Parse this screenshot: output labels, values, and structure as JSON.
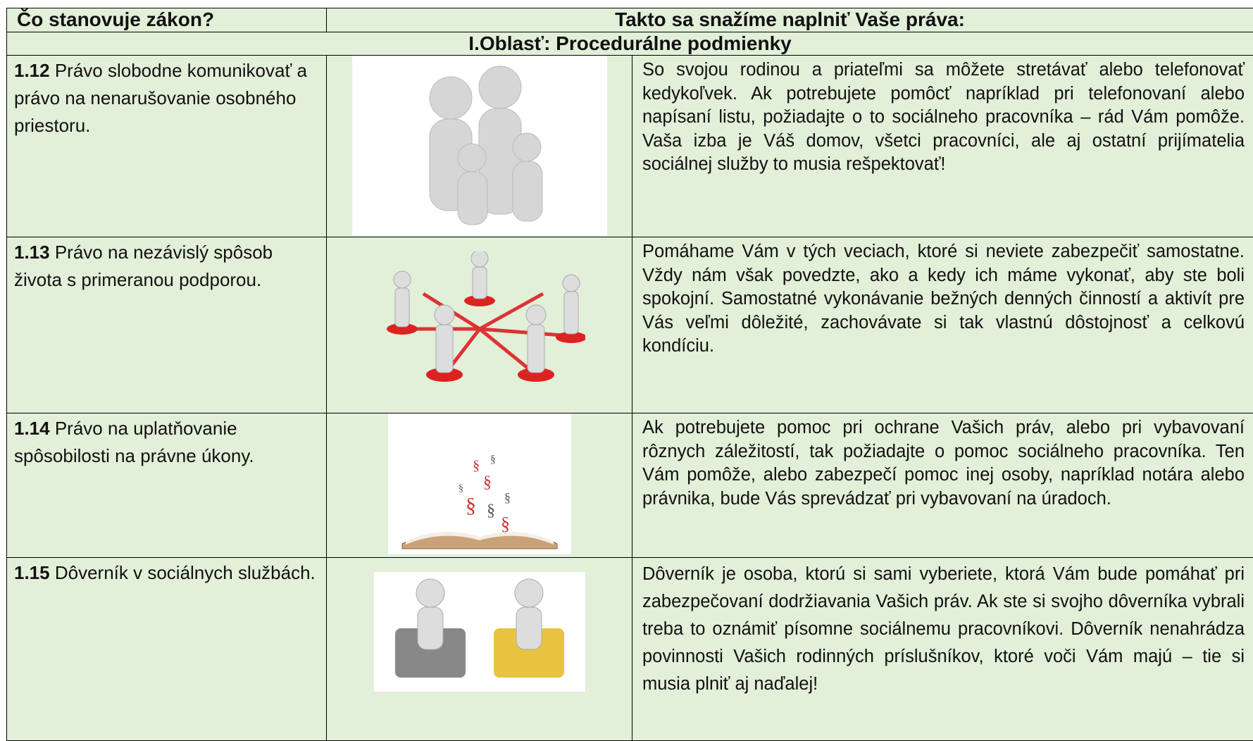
{
  "header": {
    "col1": "Čo stanovuje zákon?",
    "col2": "Takto sa snažíme naplniť Vaše práva:"
  },
  "section": "I.Oblasť: Procedurálne podmienky",
  "rows": [
    {
      "number": "1.12",
      "title": "Právo slobodne komunikovať a právo na nenarušovanie osobného priestoru.",
      "description": "So svojou rodinou a priateľmi sa môžete stretávať alebo telefonovať kedykoľvek. Ak potrebujete pomôcť napríklad pri telefonovaní alebo napísaní listu, požiadajte o to sociálneho pracovníka – rád Vám pomôže. Vaša izba je Váš domov, všetci pracovníci, ale aj ostatní prijímatelia sociálnej služby to musia rešpektovať!"
    },
    {
      "number": "1.13",
      "title": "Právo na nezávislý spôsob života s primeranou podporou.",
      "description": "Pomáhame Vám v tých veciach, ktoré si neviete zabezpečiť samostatne. Vždy nám však povedzte, ako a kedy ich máme vykonať, aby ste boli spokojní. Samostatné vykonávanie bežných denných činností a aktivít pre Vás veľmi dôležité, zachovávate si tak vlastnú dôstojnosť a celkovú kondíciu."
    },
    {
      "number": "1.14",
      "title": "Právo na uplatňovanie spôsobilosti na právne úkony.",
      "description": "Ak potrebujete pomoc pri ochrane Vašich práv, alebo pri vybavovaní rôznych záležitostí, tak požiadajte o pomoc sociálneho pracovníka. Ten Vám pomôže, alebo zabezpečí pomoc inej osoby, napríklad notára alebo právnika, bude Vás sprevádzať pri vybavovaní na úradoch."
    },
    {
      "number": "1.15",
      "title": "Dôverník v sociálnych službách.",
      "description": "Dôverník je osoba, ktorú si sami vyberiete, ktorá Vám bude pomáhať pri zabezpečovaní dodržiavania Vašich práv. Ak ste si svojho dôverníka vybrali treba to oznámiť písomne sociálnemu pracovníkovi. Dôverník nenahrádza povinnosti Vašich rodinných príslušníkov, ktoré voči Vám majú – tie si musia plniť aj naďalej!"
    }
  ]
}
